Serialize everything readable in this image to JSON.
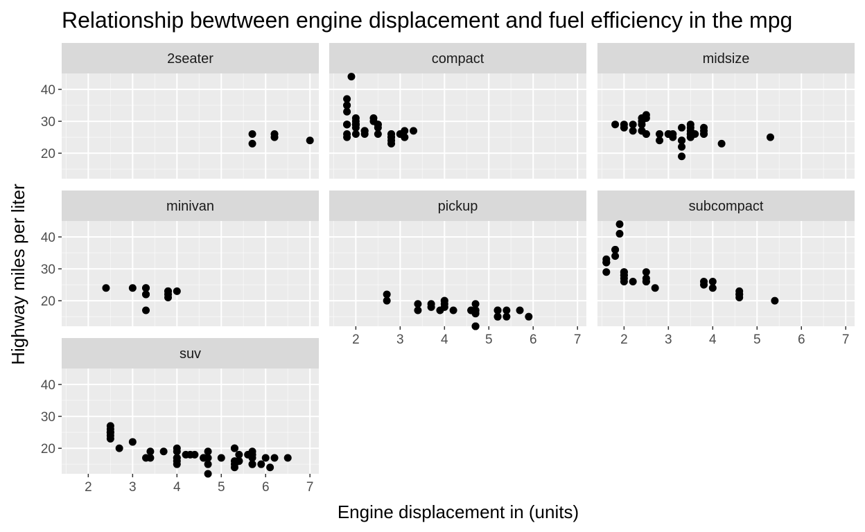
{
  "chart_data": {
    "type": "scatter",
    "title": "Relationship bewtween engine displacement and fuel efficiency in the mpg",
    "xlabel": "Engine displacement in (units)",
    "ylabel": "Highway miles per liter",
    "xlim": [
      1.4,
      7.2
    ],
    "ylim": [
      12,
      45
    ],
    "x_ticks": [
      2,
      3,
      4,
      5,
      6,
      7
    ],
    "y_ticks": [
      20,
      30,
      40
    ],
    "grid": true,
    "colors": {
      "panel_bg": "#ebebeb",
      "strip_bg": "#d9d9d9",
      "grid": "#ffffff",
      "point": "#000000"
    },
    "facets": [
      {
        "name": "2seater",
        "points": [
          [
            5.7,
            26
          ],
          [
            5.7,
            23
          ],
          [
            6.2,
            26
          ],
          [
            6.2,
            25
          ],
          [
            7.0,
            24
          ]
        ]
      },
      {
        "name": "compact",
        "points": [
          [
            1.8,
            29
          ],
          [
            1.8,
            29
          ],
          [
            2.0,
            31
          ],
          [
            2.0,
            30
          ],
          [
            2.8,
            26
          ],
          [
            2.8,
            26
          ],
          [
            3.1,
            27
          ],
          [
            1.8,
            26
          ],
          [
            1.8,
            25
          ],
          [
            2.0,
            28
          ],
          [
            2.0,
            29
          ],
          [
            2.8,
            25
          ],
          [
            2.8,
            25
          ],
          [
            3.1,
            25
          ],
          [
            3.1,
            25
          ],
          [
            2.2,
            26
          ],
          [
            2.2,
            27
          ],
          [
            2.4,
            31
          ],
          [
            2.4,
            30
          ],
          [
            3.0,
            26
          ],
          [
            3.0,
            26
          ],
          [
            3.3,
            27
          ],
          [
            1.8,
            33
          ],
          [
            1.8,
            35
          ],
          [
            1.8,
            37
          ],
          [
            1.8,
            35
          ],
          [
            1.8,
            29
          ],
          [
            1.9,
            44
          ],
          [
            2.0,
            29
          ],
          [
            2.0,
            26
          ],
          [
            2.0,
            29
          ],
          [
            2.0,
            29
          ],
          [
            2.0,
            29
          ],
          [
            2.5,
            28
          ],
          [
            2.5,
            29
          ],
          [
            2.5,
            29
          ],
          [
            2.5,
            26
          ],
          [
            2.8,
            23
          ],
          [
            2.8,
            24
          ],
          [
            2.2,
            27
          ]
        ]
      },
      {
        "name": "midsize",
        "points": [
          [
            2.4,
            27
          ],
          [
            2.4,
            30
          ],
          [
            3.1,
            26
          ],
          [
            3.5,
            29
          ],
          [
            3.6,
            26
          ],
          [
            2.4,
            29
          ],
          [
            3.0,
            26
          ],
          [
            3.3,
            24
          ],
          [
            3.3,
            24
          ],
          [
            3.3,
            22
          ],
          [
            3.3,
            19
          ],
          [
            3.8,
            26
          ],
          [
            3.8,
            26
          ],
          [
            4.2,
            23
          ],
          [
            2.4,
            27
          ],
          [
            2.5,
            31
          ],
          [
            2.5,
            32
          ],
          [
            3.5,
            27
          ],
          [
            3.5,
            26
          ],
          [
            3.0,
            26
          ],
          [
            3.5,
            25
          ],
          [
            3.5,
            25
          ],
          [
            1.8,
            29
          ],
          [
            2.0,
            28
          ],
          [
            2.0,
            29
          ],
          [
            2.2,
            27
          ],
          [
            2.2,
            29
          ],
          [
            2.4,
            31
          ],
          [
            2.8,
            26
          ],
          [
            2.8,
            26
          ],
          [
            2.8,
            24
          ],
          [
            3.1,
            26
          ],
          [
            3.1,
            25
          ],
          [
            3.3,
            28
          ],
          [
            3.8,
            28
          ],
          [
            3.8,
            27
          ],
          [
            5.3,
            25
          ],
          [
            3.0,
            26
          ],
          [
            3.0,
            26
          ],
          [
            3.5,
            28
          ],
          [
            2.5,
            26
          ],
          [
            2.5,
            26
          ],
          [
            3.5,
            26
          ]
        ]
      },
      {
        "name": "minivan",
        "points": [
          [
            2.4,
            24
          ],
          [
            3.0,
            24
          ],
          [
            3.3,
            22
          ],
          [
            3.3,
            24
          ],
          [
            3.3,
            24
          ],
          [
            3.3,
            17
          ],
          [
            3.3,
            22
          ],
          [
            3.8,
            21
          ],
          [
            3.8,
            23
          ],
          [
            3.8,
            23
          ],
          [
            4.0,
            23
          ],
          [
            3.8,
            22
          ]
        ]
      },
      {
        "name": "pickup",
        "points": [
          [
            2.7,
            20
          ],
          [
            2.7,
            22
          ],
          [
            3.4,
            17
          ],
          [
            3.4,
            19
          ],
          [
            4.0,
            18
          ],
          [
            4.0,
            20
          ],
          [
            4.7,
            17
          ],
          [
            4.7,
            19
          ],
          [
            4.7,
            12
          ],
          [
            4.7,
            12
          ],
          [
            4.7,
            17
          ],
          [
            4.7,
            17
          ],
          [
            5.2,
            15
          ],
          [
            5.2,
            17
          ],
          [
            5.7,
            17
          ],
          [
            5.9,
            15
          ],
          [
            4.7,
            16
          ],
          [
            4.7,
            17
          ],
          [
            4.7,
            12
          ],
          [
            5.2,
            17
          ],
          [
            5.2,
            15
          ],
          [
            3.7,
            19
          ],
          [
            3.7,
            18
          ],
          [
            3.9,
            17
          ],
          [
            4.2,
            17
          ],
          [
            4.7,
            17
          ],
          [
            4.7,
            16
          ],
          [
            5.4,
            17
          ],
          [
            5.4,
            15
          ],
          [
            4.0,
            20
          ],
          [
            4.0,
            19
          ],
          [
            4.6,
            17
          ],
          [
            4.6,
            17
          ]
        ]
      },
      {
        "name": "subcompact",
        "points": [
          [
            3.8,
            26
          ],
          [
            3.8,
            25
          ],
          [
            4.0,
            26
          ],
          [
            4.0,
            24
          ],
          [
            4.6,
            21
          ],
          [
            4.6,
            22
          ],
          [
            4.6,
            23
          ],
          [
            4.6,
            22
          ],
          [
            5.4,
            20
          ],
          [
            1.6,
            33
          ],
          [
            1.6,
            32
          ],
          [
            1.6,
            32
          ],
          [
            1.6,
            29
          ],
          [
            1.6,
            32
          ],
          [
            1.8,
            34
          ],
          [
            1.8,
            36
          ],
          [
            1.8,
            36
          ],
          [
            2.0,
            29
          ],
          [
            2.0,
            26
          ],
          [
            2.0,
            27
          ],
          [
            2.0,
            29
          ],
          [
            2.0,
            28
          ],
          [
            2.5,
            26
          ],
          [
            2.5,
            29
          ],
          [
            2.5,
            27
          ],
          [
            2.2,
            26
          ],
          [
            2.7,
            24
          ],
          [
            1.9,
            44
          ],
          [
            1.9,
            41
          ],
          [
            2.0,
            28
          ],
          [
            2.5,
            26
          ]
        ]
      },
      {
        "name": "suv",
        "points": [
          [
            5.3,
            20
          ],
          [
            5.3,
            15
          ],
          [
            5.3,
            20
          ],
          [
            5.7,
            17
          ],
          [
            6.0,
            17
          ],
          [
            5.7,
            19
          ],
          [
            5.7,
            15
          ],
          [
            6.2,
            17
          ],
          [
            6.5,
            17
          ],
          [
            4.2,
            18
          ],
          [
            4.6,
            17
          ],
          [
            4.6,
            17
          ],
          [
            5.4,
            18
          ],
          [
            5.4,
            16
          ],
          [
            6.1,
            14
          ],
          [
            3.0,
            22
          ],
          [
            4.7,
            17
          ],
          [
            4.7,
            19
          ],
          [
            4.7,
            15
          ],
          [
            5.7,
            15
          ],
          [
            5.9,
            15
          ],
          [
            4.0,
            19
          ],
          [
            4.0,
            20
          ],
          [
            4.0,
            17
          ],
          [
            4.6,
            17
          ],
          [
            5.0,
            17
          ],
          [
            2.5,
            25
          ],
          [
            2.5,
            25
          ],
          [
            2.5,
            26
          ],
          [
            2.5,
            25
          ],
          [
            2.5,
            27
          ],
          [
            2.5,
            23
          ],
          [
            2.5,
            24
          ],
          [
            2.7,
            20
          ],
          [
            3.3,
            17
          ],
          [
            3.4,
            19
          ],
          [
            3.4,
            17
          ],
          [
            3.7,
            19
          ],
          [
            4.0,
            15
          ],
          [
            4.0,
            17
          ],
          [
            4.0,
            16
          ],
          [
            4.3,
            18
          ],
          [
            4.4,
            18
          ],
          [
            4.7,
            12
          ],
          [
            5.6,
            18
          ],
          [
            5.7,
            18
          ],
          [
            5.3,
            14
          ],
          [
            5.3,
            16
          ],
          [
            5.4,
            16
          ]
        ]
      }
    ]
  }
}
